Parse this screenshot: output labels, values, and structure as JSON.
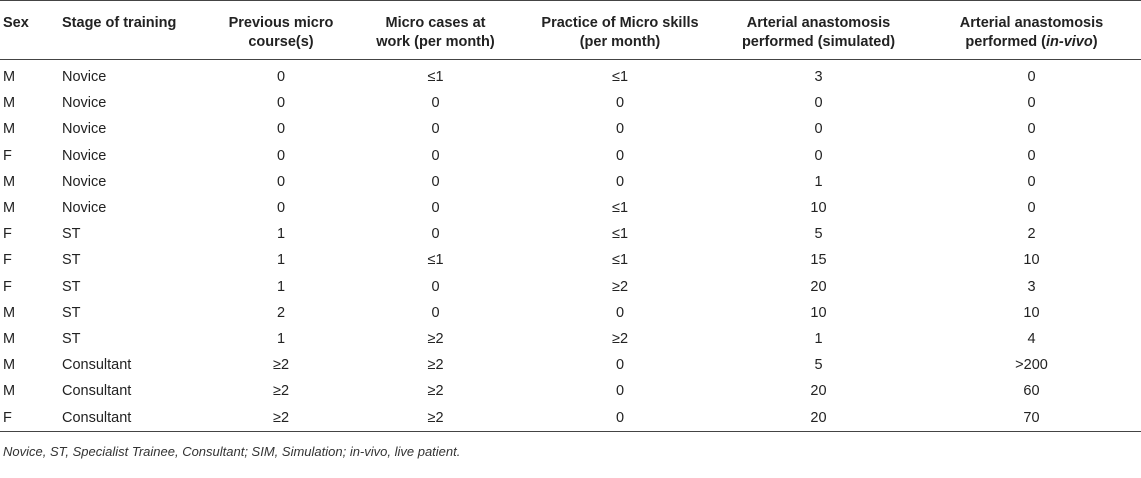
{
  "headers": [
    {
      "line1": "Sex",
      "line2": ""
    },
    {
      "line1": "Stage of training",
      "line2": ""
    },
    {
      "line1": "Previous micro",
      "line2": "course(s)"
    },
    {
      "line1": "Micro cases at",
      "line2": "work (per month)"
    },
    {
      "line1": "Practice of Micro skills",
      "line2": "(per month)"
    },
    {
      "line1": "Arterial anastomosis",
      "line2": "performed (simulated)"
    },
    {
      "line1": "Arterial anastomosis",
      "line2_pre": "performed (",
      "line2_it": "in-vivo",
      "line2_post": ")"
    }
  ],
  "rows": [
    [
      "M",
      "Novice",
      "0",
      "≤1",
      "≤1",
      "3",
      "0"
    ],
    [
      "M",
      "Novice",
      "0",
      "0",
      "0",
      "0",
      "0"
    ],
    [
      "M",
      "Novice",
      "0",
      "0",
      "0",
      "0",
      "0"
    ],
    [
      "F",
      "Novice",
      "0",
      "0",
      "0",
      "0",
      "0"
    ],
    [
      "M",
      "Novice",
      "0",
      "0",
      "0",
      "1",
      "0"
    ],
    [
      "M",
      "Novice",
      "0",
      "0",
      "≤1",
      "10",
      "0"
    ],
    [
      "F",
      "ST",
      "1",
      "0",
      "≤1",
      "5",
      "2"
    ],
    [
      "F",
      "ST",
      "1",
      "≤1",
      "≤1",
      "15",
      "10"
    ],
    [
      "F",
      "ST",
      "1",
      "0",
      "≥2",
      "20",
      "3"
    ],
    [
      "M",
      "ST",
      "2",
      "0",
      "0",
      "10",
      "10"
    ],
    [
      "M",
      "ST",
      "1",
      "≥2",
      "≥2",
      "1",
      "4"
    ],
    [
      "M",
      "Consultant",
      "≥2",
      "≥2",
      "0",
      "5",
      ">200"
    ],
    [
      "M",
      "Consultant",
      "≥2",
      "≥2",
      "0",
      "20",
      "60"
    ],
    [
      "F",
      "Consultant",
      "≥2",
      "≥2",
      "0",
      "20",
      "70"
    ]
  ],
  "footnote": "Novice, ST, Specialist Trainee, Consultant; SIM, Simulation; in-vivo, live patient."
}
